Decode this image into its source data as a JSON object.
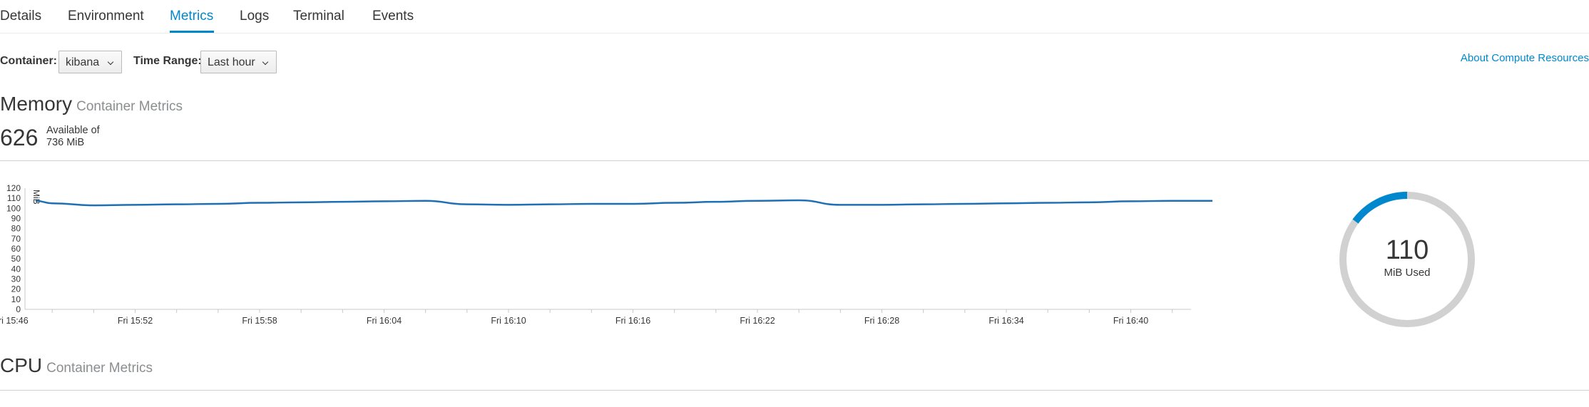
{
  "tabs": [
    {
      "label": "Details",
      "active": false
    },
    {
      "label": "Environment",
      "active": false
    },
    {
      "label": "Metrics",
      "active": true
    },
    {
      "label": "Logs",
      "active": false
    },
    {
      "label": "Terminal",
      "active": false
    },
    {
      "label": "Events",
      "active": false
    }
  ],
  "controls": {
    "container_label": "Container:",
    "container_value": "kibana",
    "time_range_label": "Time Range:",
    "time_range_value": "Last hour",
    "about_link": "About Compute Resources"
  },
  "memory": {
    "title": "Memory",
    "subtitle": "Container Metrics",
    "available": "626",
    "available_of_line1": "Available of",
    "available_of_line2": "736 MiB",
    "used_value": "110",
    "used_label": "MiB Used",
    "used_fraction": 0.149
  },
  "cpu": {
    "title": "CPU",
    "subtitle": "Container Metrics"
  },
  "colors": {
    "accent": "#0088ce",
    "line": "#1f6fb4",
    "donut_track": "#d1d1d1"
  },
  "chart_data": {
    "type": "line",
    "ylabel": "MiB",
    "ylim": [
      0,
      120
    ],
    "yticks": [
      0,
      10,
      20,
      30,
      40,
      50,
      60,
      70,
      80,
      90,
      100,
      110,
      120
    ],
    "xticks": [
      "Fri 15:46",
      "Fri 15:52",
      "Fri 15:58",
      "Fri 16:04",
      "Fri 16:10",
      "Fri 16:16",
      "Fri 16:22",
      "Fri 16:28",
      "Fri 16:34",
      "Fri 16:40"
    ],
    "series": [
      {
        "x": [
          "15:46",
          "15:48",
          "15:50",
          "15:52",
          "15:54",
          "15:56",
          "15:58",
          "16:00",
          "16:02",
          "16:04",
          "16:06",
          "16:08",
          "16:10",
          "16:12",
          "16:14",
          "16:16",
          "16:18",
          "16:20",
          "16:22",
          "16:24",
          "16:26",
          "16:28",
          "16:30",
          "16:32",
          "16:34",
          "16:36",
          "16:38",
          "16:40",
          "16:42",
          "16:44"
        ],
        "values": [
          107.5,
          105,
          103,
          103.5,
          104,
          104.5,
          105.5,
          106,
          106.5,
          107,
          107.5,
          104,
          103.5,
          104,
          104.5,
          104.5,
          105.5,
          106.5,
          107.5,
          108,
          103.5,
          103.5,
          104,
          104.5,
          105,
          105.5,
          106,
          107,
          107.5,
          107.5
        ]
      }
    ]
  }
}
